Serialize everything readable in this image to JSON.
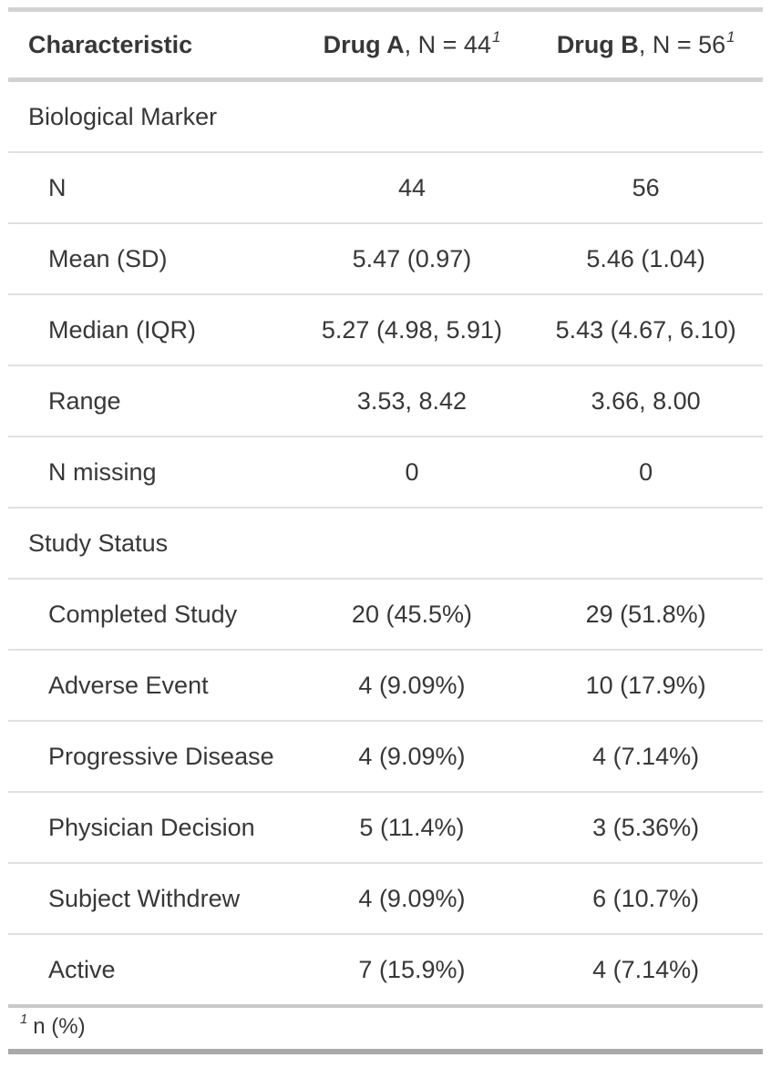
{
  "colors": {
    "text": "#373737",
    "row_border": "#e0e0e0",
    "heavy_border": "#d2d2d2",
    "footnote_top_border": "#c9c9c9",
    "bottom_border": "#a9a9a9",
    "background": "#ffffff"
  },
  "table": {
    "header": {
      "characteristic": "Characteristic",
      "columns": [
        {
          "drug": "Drug A",
          "n_text": ", N = 44",
          "footnote_mark": "1"
        },
        {
          "drug": "Drug B",
          "n_text": ", N = 56",
          "footnote_mark": "1"
        }
      ]
    },
    "rows": [
      {
        "type": "section",
        "label": "Biological Marker",
        "drug_a": "",
        "drug_b": ""
      },
      {
        "type": "item",
        "label": "N",
        "drug_a": "44",
        "drug_b": "56"
      },
      {
        "type": "item",
        "label": "Mean (SD)",
        "drug_a": "5.47 (0.97)",
        "drug_b": "5.46 (1.04)"
      },
      {
        "type": "item",
        "label": "Median (IQR)",
        "drug_a": "5.27 (4.98, 5.91)",
        "drug_b": "5.43 (4.67, 6.10)"
      },
      {
        "type": "item",
        "label": "Range",
        "drug_a": "3.53, 8.42",
        "drug_b": "3.66, 8.00"
      },
      {
        "type": "item",
        "label": "N missing",
        "drug_a": "0",
        "drug_b": "0"
      },
      {
        "type": "section",
        "label": "Study Status",
        "drug_a": "",
        "drug_b": ""
      },
      {
        "type": "item",
        "label": "Completed Study",
        "drug_a": "20 (45.5%)",
        "drug_b": "29 (51.8%)"
      },
      {
        "type": "item",
        "label": "Adverse Event",
        "drug_a": "4 (9.09%)",
        "drug_b": "10 (17.9%)"
      },
      {
        "type": "item",
        "label": "Progressive Disease",
        "drug_a": "4 (9.09%)",
        "drug_b": "4 (7.14%)"
      },
      {
        "type": "item",
        "label": "Physician Decision",
        "drug_a": "5 (11.4%)",
        "drug_b": "3 (5.36%)"
      },
      {
        "type": "item",
        "label": "Subject Withdrew",
        "drug_a": "4 (9.09%)",
        "drug_b": "6 (10.7%)"
      },
      {
        "type": "item",
        "label": "Active",
        "drug_a": "7 (15.9%)",
        "drug_b": "4 (7.14%)"
      }
    ],
    "footnote": {
      "mark": "1",
      "text": "n (%)"
    }
  },
  "chart_data": {
    "type": "table",
    "title": "",
    "columns": [
      "Characteristic",
      "Drug A, N = 44",
      "Drug B, N = 56"
    ],
    "rows": [
      [
        "Biological Marker",
        "",
        ""
      ],
      [
        "N",
        "44",
        "56"
      ],
      [
        "Mean (SD)",
        "5.47 (0.97)",
        "5.46 (1.04)"
      ],
      [
        "Median (IQR)",
        "5.27 (4.98, 5.91)",
        "5.43 (4.67, 6.10)"
      ],
      [
        "Range",
        "3.53, 8.42",
        "3.66, 8.00"
      ],
      [
        "N missing",
        "0",
        "0"
      ],
      [
        "Study Status",
        "",
        ""
      ],
      [
        "Completed Study",
        "20 (45.5%)",
        "29 (51.8%)"
      ],
      [
        "Adverse Event",
        "4 (9.09%)",
        "10 (17.9%)"
      ],
      [
        "Progressive Disease",
        "4 (9.09%)",
        "4 (7.14%)"
      ],
      [
        "Physician Decision",
        "5 (11.4%)",
        "3 (5.36%)"
      ],
      [
        "Subject Withdrew",
        "4 (9.09%)",
        "6 (10.7%)"
      ],
      [
        "Active",
        "7 (15.9%)",
        "4 (7.14%)"
      ]
    ],
    "footnotes": [
      "1 n (%)"
    ],
    "layout_hints": {
      "column_alignment": [
        "left",
        "center",
        "center"
      ],
      "section_rows": [
        0,
        6
      ],
      "indented_rows": [
        1,
        2,
        3,
        4,
        5,
        7,
        8,
        9,
        10,
        11,
        12
      ]
    }
  }
}
